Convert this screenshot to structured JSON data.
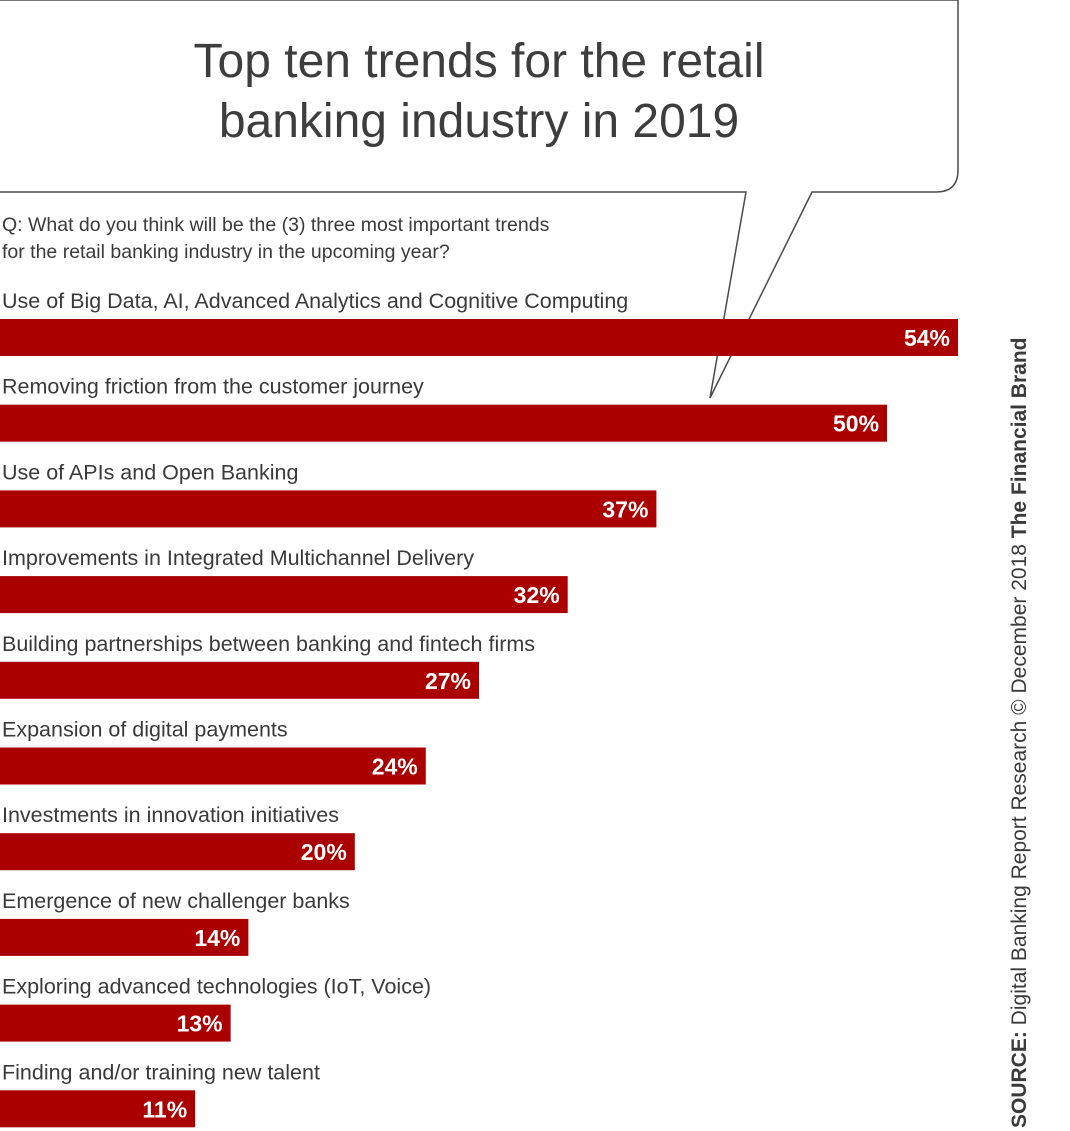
{
  "title_line1": "Top ten trends for the retail",
  "title_line2": "banking industry in 2019",
  "question_line1": "Q: What do you think will be the (3) three most important trends",
  "question_line2": "for the retail banking industry in the upcoming year?",
  "source": {
    "label": "SOURCE:",
    "text": "Digital Banking Report Research",
    "copyright_symbol": "©",
    "date": "December 2018",
    "brand": "The Financial Brand"
  },
  "colors": {
    "bar": "#aa0000",
    "bar_text": "#ffffff",
    "text": "#3a3a3a",
    "bubble_stroke": "#4a4a4a"
  },
  "chart_data": {
    "type": "bar",
    "orientation": "horizontal",
    "categories": [
      "Use of Big Data, AI, Advanced Analytics and Cognitive Computing",
      "Removing friction from the customer journey",
      "Use of APIs and Open Banking",
      "Improvements in Integrated Multichannel Delivery",
      "Building partnerships between banking and fintech firms",
      "Expansion of digital payments",
      "Investments in innovation initiatives",
      "Emergence of new challenger banks",
      "Exploring advanced technologies (IoT, Voice)",
      "Finding and/or training new talent"
    ],
    "values": [
      54,
      50,
      37,
      32,
      27,
      24,
      20,
      14,
      13,
      11
    ],
    "value_labels": [
      "54%",
      "50%",
      "37%",
      "32%",
      "27%",
      "24%",
      "20%",
      "14%",
      "13%",
      "11%"
    ],
    "unit": "%",
    "xlim": [
      0,
      54
    ],
    "grid": false,
    "legend": "none"
  }
}
